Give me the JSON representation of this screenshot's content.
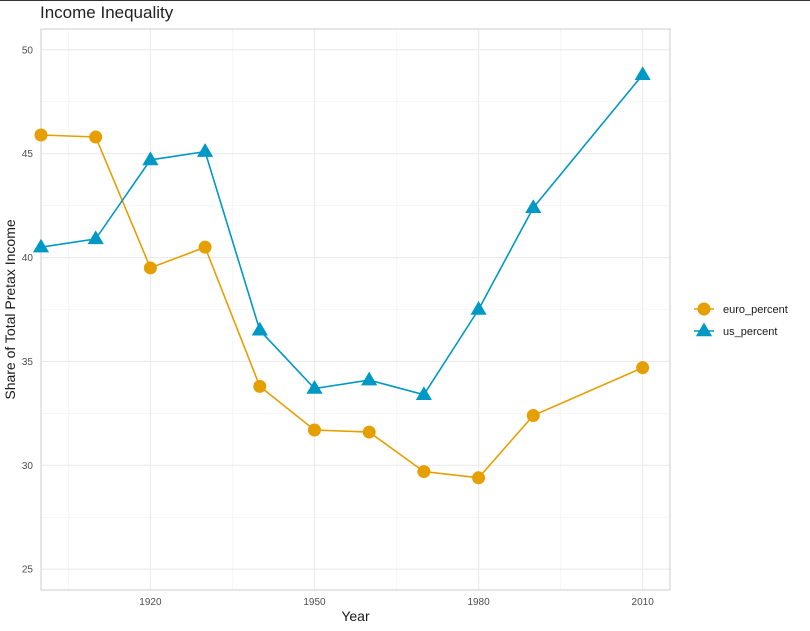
{
  "chart_data": {
    "type": "line",
    "title": "Income Inequality",
    "xlabel": "Year",
    "ylabel": "Share of Total Pretax Income",
    "xlim": [
      1900,
      2015
    ],
    "ylim": [
      24,
      51
    ],
    "x_ticks": [
      1920,
      1950,
      1980,
      2010
    ],
    "y_ticks": [
      25,
      30,
      35,
      40,
      45,
      50
    ],
    "grid": true,
    "legend_position": "right",
    "x": [
      1900,
      1910,
      1920,
      1930,
      1940,
      1950,
      1960,
      1970,
      1980,
      1990,
      2010
    ],
    "series": [
      {
        "name": "euro_percent",
        "color": "#E69F00",
        "marker": "circle",
        "values": [
          45.9,
          45.8,
          39.5,
          40.5,
          33.8,
          31.7,
          31.6,
          29.7,
          29.4,
          32.4,
          34.7
        ]
      },
      {
        "name": "us_percent",
        "color": "#0099C6",
        "marker": "triangle",
        "values": [
          40.5,
          40.9,
          44.7,
          45.1,
          36.5,
          33.7,
          34.1,
          33.4,
          37.5,
          42.4,
          48.8
        ]
      }
    ]
  }
}
